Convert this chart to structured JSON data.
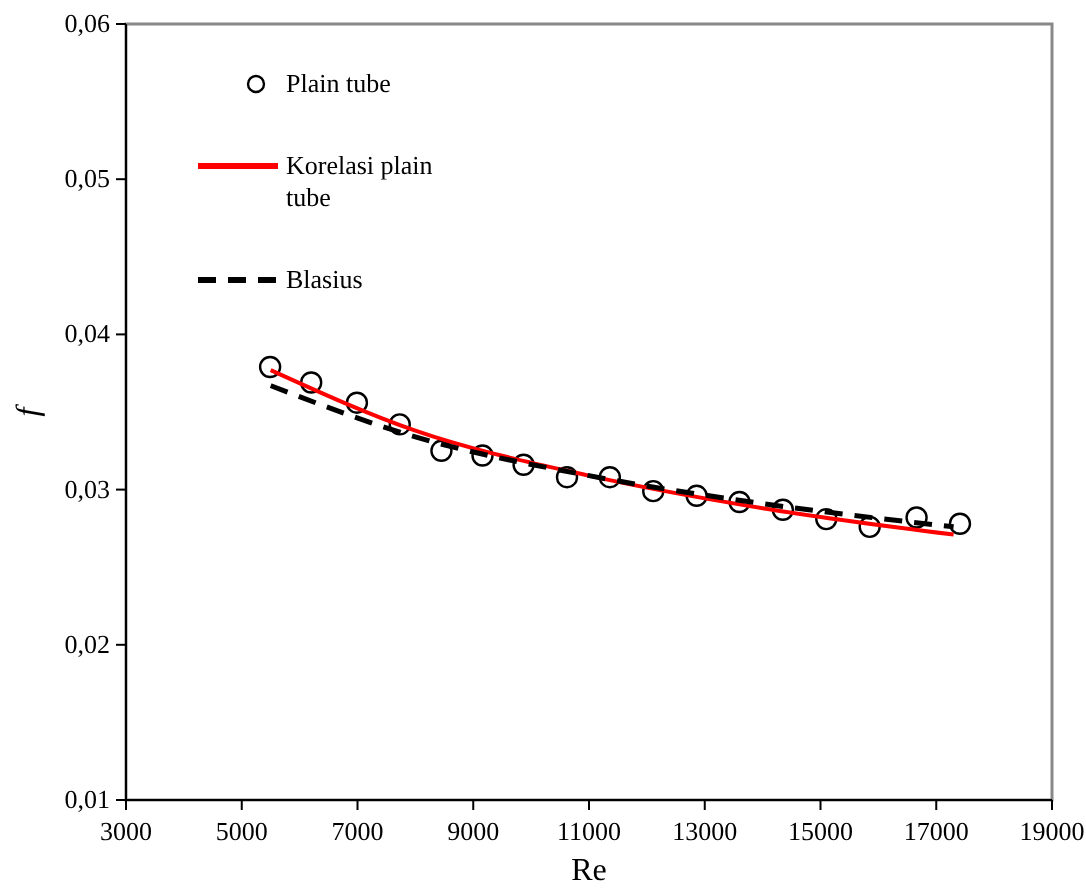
{
  "chart_data": {
    "type": "scatter",
    "xlabel": "Re",
    "ylabel": "f",
    "xlim": [
      3000,
      19000
    ],
    "xticks": [
      3000,
      5000,
      7000,
      9000,
      11000,
      13000,
      15000,
      17000,
      19000
    ],
    "ylim": [
      0.01,
      0.06
    ],
    "yticks": [
      {
        "value": 0.01,
        "label": "0,01"
      },
      {
        "value": 0.02,
        "label": "0,02"
      },
      {
        "value": 0.03,
        "label": "0,03"
      },
      {
        "value": 0.04,
        "label": "0,04"
      },
      {
        "value": 0.05,
        "label": "0,05"
      },
      {
        "value": 0.06,
        "label": "0,06"
      }
    ],
    "grid": false,
    "legend": "top left",
    "series": [
      {
        "name": "Plain tube",
        "marker": "circle",
        "color": "#000000",
        "x": [
          5490,
          6200,
          6990,
          7730,
          8450,
          9160,
          9870,
          10620,
          11360,
          12110,
          12860,
          13600,
          14350,
          15100,
          15850,
          16660,
          17410
        ],
        "values": [
          0.0379,
          0.0369,
          0.0356,
          0.0342,
          0.0325,
          0.0322,
          0.0316,
          0.0308,
          0.0308,
          0.0299,
          0.0296,
          0.0292,
          0.0287,
          0.0281,
          0.0276,
          0.0282,
          0.0278
        ]
      },
      {
        "name": "Korelasi plain tube",
        "type": "line",
        "line_style": "solid",
        "color": "#ff0000",
        "x": [
          5500,
          8000,
          11000,
          14000,
          17300
        ],
        "values": [
          0.0377,
          0.0338,
          0.0309,
          0.0288,
          0.0271
        ]
      },
      {
        "name": "Blasius",
        "type": "line",
        "line_style": "dashed",
        "color": "#000000",
        "x": [
          5500,
          8000,
          11000,
          14000,
          17300
        ],
        "values": [
          0.0367,
          0.0334,
          0.0309,
          0.0291,
          0.0276
        ]
      }
    ]
  }
}
